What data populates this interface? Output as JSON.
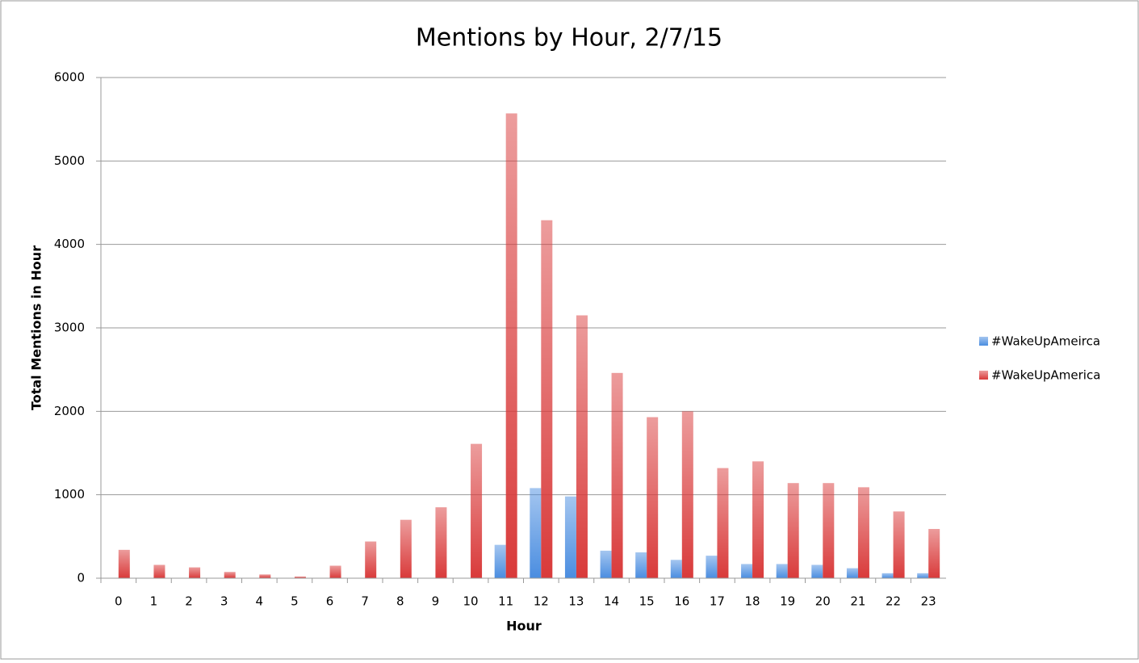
{
  "chart_data": {
    "type": "bar",
    "title": "Mentions by Hour, 2/7/15",
    "x_label": "Hour",
    "y_label": "Total Mentions in Hour",
    "categories": [
      "0",
      "1",
      "2",
      "3",
      "4",
      "5",
      "6",
      "7",
      "8",
      "9",
      "10",
      "11",
      "12",
      "13",
      "14",
      "15",
      "16",
      "17",
      "18",
      "19",
      "20",
      "21",
      "22",
      "23"
    ],
    "series": [
      {
        "name": "#WakeUpAmeirca",
        "color": "#4a8de0",
        "values": [
          0,
          0,
          0,
          0,
          0,
          0,
          0,
          0,
          0,
          0,
          0,
          400,
          1080,
          980,
          330,
          310,
          220,
          270,
          170,
          170,
          160,
          120,
          60,
          60
        ]
      },
      {
        "name": "#WakeUpAmerica",
        "color": "#d93a3a",
        "values": [
          340,
          160,
          130,
          75,
          45,
          20,
          150,
          440,
          700,
          850,
          1610,
          5570,
          4290,
          3150,
          2460,
          1930,
          2000,
          1320,
          1400,
          1140,
          1140,
          1090,
          800,
          590
        ]
      }
    ],
    "ylim": [
      0,
      6000
    ],
    "yticks": [
      0,
      1000,
      2000,
      3000,
      4000,
      5000,
      6000
    ],
    "grid": true,
    "legend": "right"
  }
}
